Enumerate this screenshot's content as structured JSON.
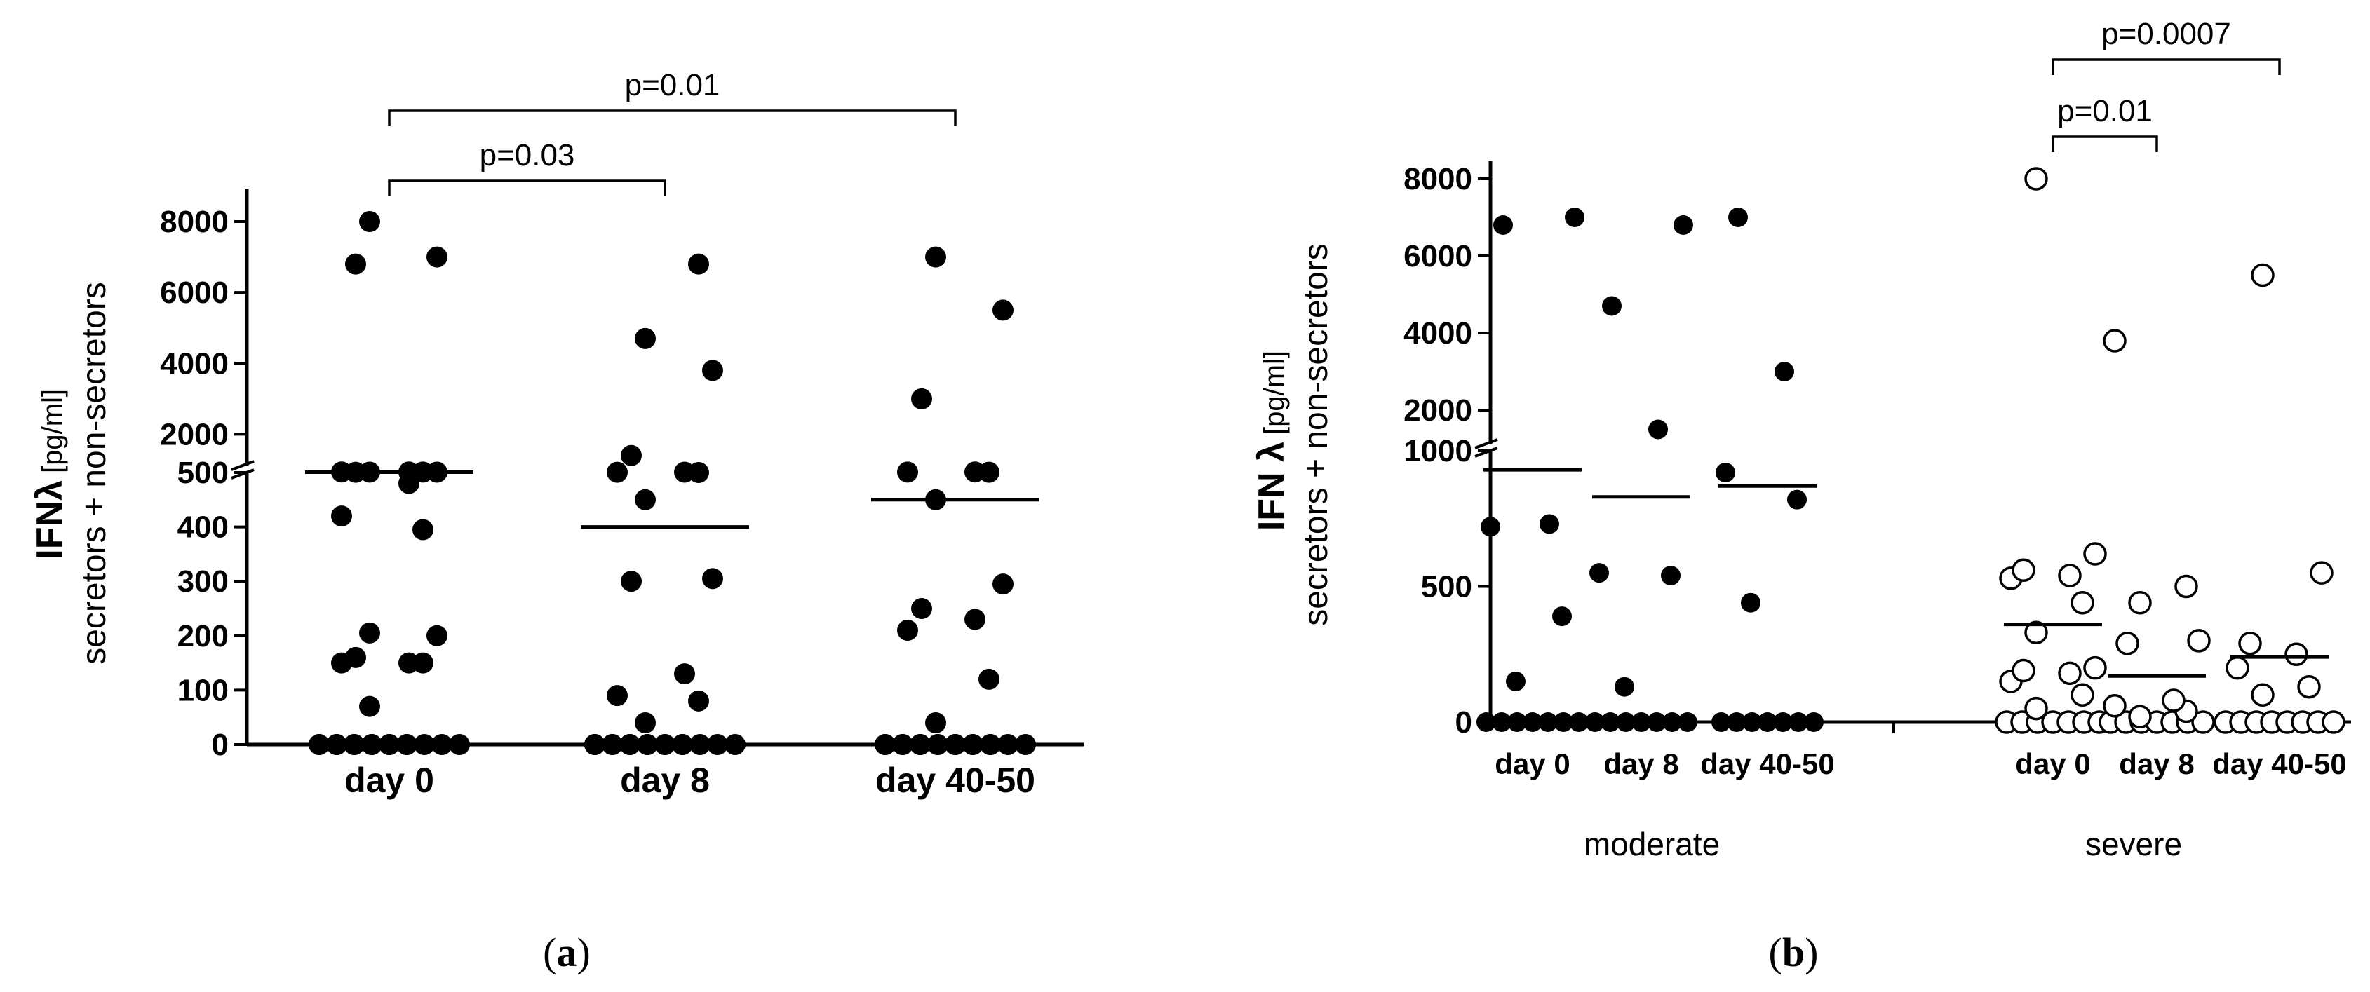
{
  "chart_data": [
    {
      "type": "scatter",
      "panel_label": "a",
      "ylabel_main": "IFNλ",
      "ylabel_unit": "[pg/ml]",
      "ylabel_sub": "secretors + non-secretors",
      "y_ticks_lower": [
        "0",
        "100",
        "200",
        "300",
        "400",
        "500"
      ],
      "y_ticks_upper": [
        "2000",
        "4000",
        "6000",
        "8000"
      ],
      "y_break": {
        "lower_range": [
          0,
          500
        ],
        "upper_range": [
          1000,
          8000
        ]
      },
      "categories": [
        "day 0",
        "day 8",
        "day 40-50"
      ],
      "marker": "filled",
      "groups": [
        {
          "name": "day 0",
          "median": 560,
          "values": [
            0,
            0,
            0,
            0,
            0,
            0,
            0,
            0,
            0,
            0,
            0,
            0,
            0,
            0,
            0,
            70,
            150,
            150,
            150,
            160,
            200,
            205,
            395,
            420,
            480,
            540,
            560,
            570,
            580,
            590,
            590,
            6800,
            7000,
            8000
          ]
        },
        {
          "name": "day 8",
          "median": 400,
          "values": [
            0,
            0,
            0,
            0,
            0,
            0,
            0,
            0,
            0,
            0,
            0,
            0,
            0,
            0,
            0,
            40,
            80,
            90,
            130,
            300,
            305,
            450,
            500,
            550,
            560,
            1400,
            3800,
            4700,
            6800
          ]
        },
        {
          "name": "day 40-50",
          "median": 450,
          "values": [
            0,
            0,
            0,
            0,
            0,
            0,
            0,
            0,
            0,
            0,
            0,
            0,
            0,
            0,
            0,
            0,
            40,
            120,
            210,
            230,
            250,
            295,
            450,
            550,
            580,
            600,
            3000,
            5500,
            7000
          ]
        }
      ],
      "comparisons": [
        {
          "from": "day 0",
          "to": "day 8",
          "label": "p=0.03"
        },
        {
          "from": "day 0",
          "to": "day 40-50",
          "label": "p=0.01"
        }
      ]
    },
    {
      "type": "scatter",
      "panel_label": "b",
      "ylabel_main": "IFN λ",
      "ylabel_unit": "[pg/ml]",
      "ylabel_sub": "secretors + non-secretors",
      "y_ticks_lower": [
        "0",
        "500",
        "1000"
      ],
      "y_ticks_upper": [
        "2000",
        "4000",
        "6000",
        "8000"
      ],
      "y_break": {
        "lower_range": [
          0,
          1000
        ],
        "upper_range": [
          1000,
          8000
        ]
      },
      "categories": [
        "day 0",
        "day 8",
        "day 40-50",
        "day 0",
        "day 8",
        "day 40-50"
      ],
      "group_labels": [
        "moderate",
        "severe"
      ],
      "groups": [
        {
          "name": "day 0",
          "group": "moderate",
          "marker": "filled",
          "median": 930,
          "values": [
            0,
            0,
            0,
            0,
            0,
            0,
            0,
            150,
            390,
            720,
            730,
            6800,
            7000
          ]
        },
        {
          "name": "day 8",
          "group": "moderate",
          "marker": "filled",
          "median": 830,
          "values": [
            0,
            0,
            0,
            0,
            0,
            0,
            0,
            130,
            540,
            550,
            1500,
            4700,
            6800
          ]
        },
        {
          "name": "day 40-50",
          "group": "moderate",
          "marker": "filled",
          "median": 870,
          "values": [
            0,
            0,
            0,
            0,
            0,
            0,
            0,
            440,
            820,
            920,
            3000,
            7000
          ]
        },
        {
          "name": "day 0",
          "group": "severe",
          "marker": "open",
          "median": 360,
          "values": [
            0,
            0,
            0,
            0,
            0,
            0,
            0,
            50,
            100,
            150,
            180,
            190,
            200,
            330,
            440,
            530,
            540,
            560,
            620,
            8000
          ]
        },
        {
          "name": "day 8",
          "group": "severe",
          "marker": "open",
          "median": 170,
          "values": [
            0,
            0,
            0,
            0,
            0,
            0,
            0,
            20,
            40,
            60,
            80,
            290,
            300,
            440,
            500,
            3800
          ]
        },
        {
          "name": "day 40-50",
          "group": "severe",
          "marker": "open",
          "median": 240,
          "values": [
            0,
            0,
            0,
            0,
            0,
            0,
            0,
            0,
            100,
            130,
            200,
            250,
            290,
            550,
            5500
          ]
        }
      ],
      "comparisons": [
        {
          "from": "severe day 0",
          "to": "severe day 8",
          "label": "p=0.01"
        },
        {
          "from": "severe day 0",
          "to": "severe day 40-50",
          "label": "p=0.0007"
        }
      ]
    }
  ]
}
